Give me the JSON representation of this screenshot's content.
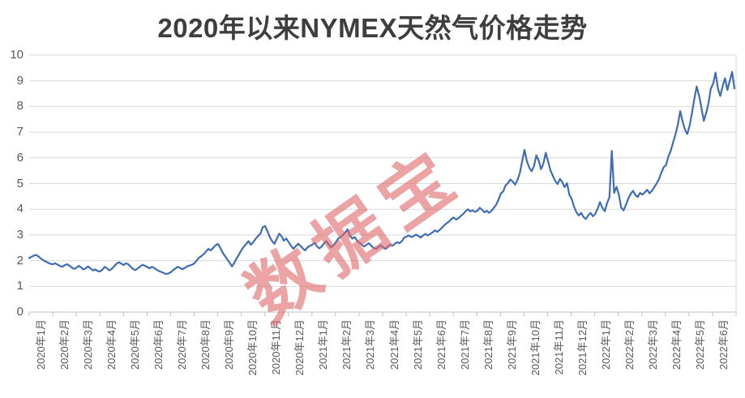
{
  "watermark": {
    "text": "数据宝",
    "color": "rgba(224,102,102,0.60)"
  },
  "colors": {
    "line": "#3E6DB5",
    "gridline": "#D9D9D9",
    "axis_line": "#BFBFBF",
    "tick": "#BFBFBF",
    "title_text": "#3E3E3E",
    "axis_text": "#595959",
    "background": "#FFFFFF"
  },
  "chart_data": {
    "type": "line",
    "title": "2020年以来NYMEX天然气价格走势",
    "xlabel": "",
    "ylabel": "",
    "ylim": [
      0,
      10
    ],
    "yticks": [
      0,
      1,
      2,
      3,
      4,
      5,
      6,
      7,
      8,
      9,
      10
    ],
    "grid": "horizontal",
    "legend": "none",
    "categories": [
      "2020年1月",
      "2020年2月",
      "2020年3月",
      "2020年4月",
      "2020年5月",
      "2020年6月",
      "2020年7月",
      "2020年8月",
      "2020年9月",
      "2020年10月",
      "2020年11月",
      "2020年12月",
      "2021年1月",
      "2021年2月",
      "2021年3月",
      "2021年4月",
      "2021年5月",
      "2021年6月",
      "2021年7月",
      "2021年8月",
      "2021年9月",
      "2021年10月",
      "2021年11月",
      "2021年12月",
      "2022年1月",
      "2022年2月",
      "2022年3月",
      "2022年4月",
      "2022年5月",
      "2022年6月"
    ],
    "points_per_category": 10,
    "series": [
      {
        "name": "NYMEX天然气价格",
        "values": [
          2.1,
          2.15,
          2.2,
          2.22,
          2.16,
          2.08,
          2.02,
          1.97,
          1.92,
          1.88,
          1.86,
          1.9,
          1.85,
          1.8,
          1.76,
          1.82,
          1.86,
          1.81,
          1.74,
          1.68,
          1.72,
          1.8,
          1.74,
          1.66,
          1.7,
          1.78,
          1.7,
          1.62,
          1.66,
          1.6,
          1.58,
          1.65,
          1.76,
          1.7,
          1.62,
          1.68,
          1.78,
          1.88,
          1.94,
          1.89,
          1.83,
          1.9,
          1.86,
          1.77,
          1.68,
          1.63,
          1.7,
          1.77,
          1.84,
          1.8,
          1.76,
          1.7,
          1.76,
          1.72,
          1.65,
          1.6,
          1.56,
          1.52,
          1.48,
          1.5,
          1.55,
          1.63,
          1.7,
          1.76,
          1.72,
          1.67,
          1.72,
          1.78,
          1.81,
          1.84,
          1.9,
          2.0,
          2.12,
          2.18,
          2.26,
          2.36,
          2.46,
          2.4,
          2.5,
          2.6,
          2.65,
          2.5,
          2.32,
          2.18,
          2.05,
          1.92,
          1.78,
          1.92,
          2.1,
          2.25,
          2.42,
          2.55,
          2.65,
          2.76,
          2.62,
          2.72,
          2.85,
          2.96,
          3.05,
          3.3,
          3.35,
          3.15,
          2.92,
          2.76,
          2.66,
          2.86,
          3.05,
          2.95,
          2.78,
          2.86,
          2.72,
          2.58,
          2.46,
          2.56,
          2.66,
          2.58,
          2.48,
          2.4,
          2.52,
          2.58,
          2.62,
          2.7,
          2.56,
          2.48,
          2.55,
          2.68,
          2.76,
          2.62,
          2.52,
          2.6,
          2.72,
          2.86,
          2.92,
          3.0,
          3.1,
          3.22,
          2.98,
          2.86,
          2.92,
          2.78,
          2.7,
          2.62,
          2.55,
          2.62,
          2.68,
          2.58,
          2.5,
          2.46,
          2.52,
          2.6,
          2.52,
          2.46,
          2.54,
          2.62,
          2.58,
          2.66,
          2.72,
          2.68,
          2.76,
          2.9,
          2.94,
          2.98,
          2.92,
          2.96,
          3.02,
          2.96,
          2.9,
          2.98,
          3.04,
          2.98,
          3.04,
          3.1,
          3.18,
          3.12,
          3.2,
          3.28,
          3.38,
          3.46,
          3.52,
          3.62,
          3.68,
          3.6,
          3.66,
          3.74,
          3.82,
          3.92,
          4.0,
          3.92,
          3.96,
          3.9,
          3.94,
          4.06,
          3.98,
          3.88,
          3.94,
          3.86,
          3.94,
          4.06,
          4.18,
          4.38,
          4.62,
          4.7,
          4.94,
          5.02,
          5.16,
          5.08,
          4.96,
          5.14,
          5.4,
          5.87,
          6.31,
          5.88,
          5.62,
          5.48,
          5.68,
          6.1,
          5.9,
          5.56,
          5.78,
          6.2,
          5.86,
          5.52,
          5.3,
          5.1,
          4.98,
          5.18,
          5.06,
          4.86,
          5.02,
          4.57,
          4.4,
          4.1,
          3.88,
          3.76,
          3.86,
          3.7,
          3.62,
          3.76,
          3.86,
          3.73,
          3.82,
          4.02,
          4.28,
          4.06,
          3.92,
          4.24,
          4.48,
          6.27,
          4.64,
          4.87,
          4.57,
          4.06,
          3.96,
          4.18,
          4.42,
          4.6,
          4.72,
          4.56,
          4.48,
          4.64,
          4.57,
          4.66,
          4.76,
          4.62,
          4.72,
          4.86,
          5.0,
          5.18,
          5.42,
          5.64,
          5.72,
          6.06,
          6.28,
          6.6,
          6.92,
          7.3,
          7.82,
          7.42,
          7.1,
          6.93,
          7.26,
          7.74,
          8.3,
          8.78,
          8.42,
          7.94,
          7.44,
          7.74,
          8.14,
          8.7,
          8.9,
          9.32,
          8.7,
          8.41,
          8.8,
          9.1,
          8.64,
          9.0,
          9.35,
          8.7
        ]
      }
    ]
  }
}
